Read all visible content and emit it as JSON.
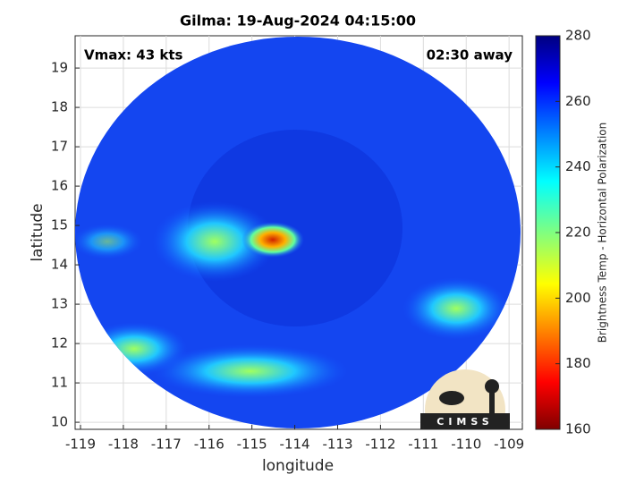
{
  "chart_data": {
    "type": "map",
    "title": "Gilma: 19-Aug-2024 04:15:00",
    "annotations": [
      "Vmax: 43 kts",
      "02:30 away"
    ],
    "xlabel": "longitude",
    "ylabel": "latitude",
    "xlim": [
      -119.125,
      -108.69
    ],
    "ylim": [
      9.82,
      19.82
    ],
    "xticks": [
      -119,
      -118,
      -117,
      -116,
      -115,
      -114,
      -113,
      -112,
      -111,
      -110,
      -109
    ],
    "yticks": [
      10,
      11,
      12,
      13,
      14,
      15,
      16,
      17,
      18,
      19
    ],
    "grid": true,
    "colorbar": {
      "label": "Brightness Temp - Horizontal Polarization",
      "lim": [
        160,
        280
      ],
      "ticks": [
        160,
        180,
        200,
        220,
        240,
        260,
        280
      ]
    },
    "logo_text": "CIMSS"
  }
}
